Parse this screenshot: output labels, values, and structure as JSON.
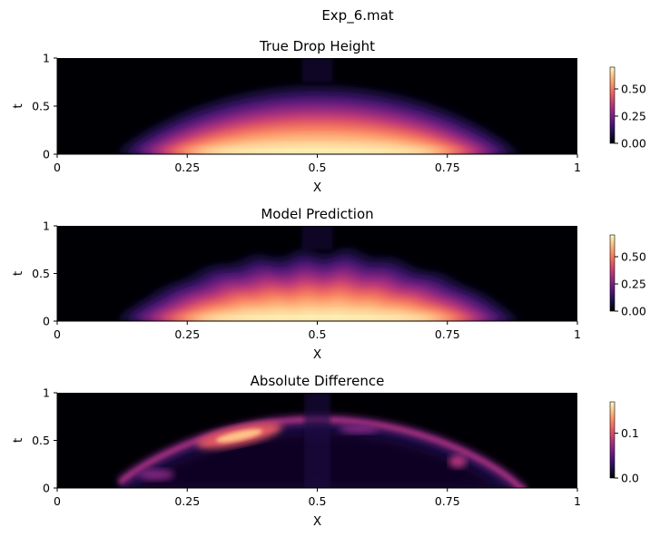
{
  "figure": {
    "suptitle": "Exp_6.mat"
  },
  "chart_data": [
    {
      "type": "heatmap",
      "title": "True Drop Height",
      "xlabel": "X",
      "ylabel": "t",
      "xlim": [
        0,
        1
      ],
      "ylim": [
        0,
        1
      ],
      "xticks": [
        "0",
        "0.25",
        "0.5",
        "0.75",
        "1"
      ],
      "yticks": [
        "0",
        "0.5",
        "1"
      ],
      "colormap": "magma",
      "colorbar": {
        "range": [
          0,
          0.7
        ],
        "ticks": [
          "0.00",
          "0.25",
          "0.50"
        ]
      },
      "field": {
        "x_left": 0.12,
        "x_right": 0.9,
        "x_center": 0.5,
        "max_t": 0.72,
        "max_value": 0.7,
        "shape": "smooth dome"
      }
    },
    {
      "type": "heatmap",
      "title": "Model Prediction",
      "xlabel": "X",
      "ylabel": "t",
      "xlim": [
        0,
        1
      ],
      "ylim": [
        0,
        1
      ],
      "xticks": [
        "0",
        "0.25",
        "0.5",
        "0.75",
        "1"
      ],
      "yticks": [
        "0",
        "0.5",
        "1"
      ],
      "colormap": "magma",
      "colorbar": {
        "range": [
          0,
          0.7
        ],
        "ticks": [
          "0.00",
          "0.25",
          "0.50"
        ]
      },
      "field": {
        "x_left": 0.12,
        "x_right": 0.9,
        "x_center": 0.5,
        "max_t": 0.74,
        "max_value": 0.7,
        "shape": "rough dome"
      }
    },
    {
      "type": "heatmap",
      "title": "Absolute Difference",
      "xlabel": "X",
      "ylabel": "t",
      "xlim": [
        0,
        1
      ],
      "ylim": [
        0,
        1
      ],
      "xticks": [
        "0",
        "0.25",
        "0.5",
        "0.75",
        "1"
      ],
      "yticks": [
        "0",
        "0.5",
        "1"
      ],
      "colormap": "magma",
      "colorbar": {
        "range": [
          0,
          0.17
        ],
        "ticks": [
          "0.0",
          "0.1"
        ]
      },
      "field": {
        "x_left": 0.12,
        "x_right": 0.9,
        "x_center": 0.5,
        "max_t": 0.72,
        "max_value": 0.17,
        "shape": "error along dome edge",
        "hotspot_x": 0.35
      }
    }
  ]
}
